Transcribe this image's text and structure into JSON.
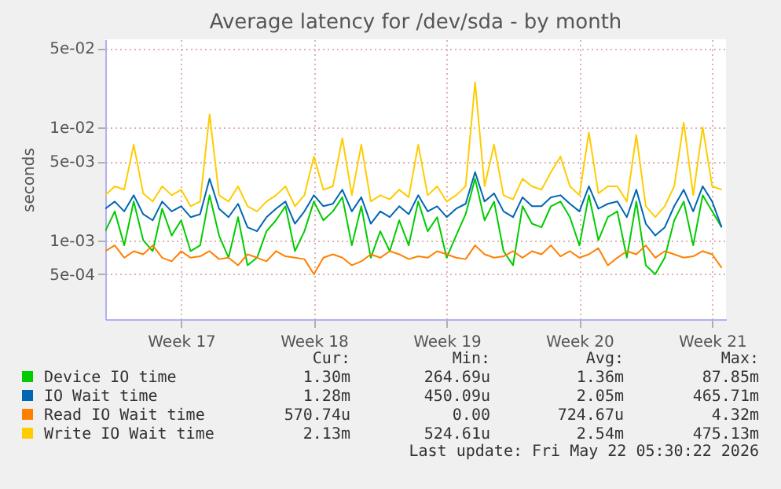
{
  "chart_data": {
    "type": "line",
    "title": "Average latency for /dev/sda - by month",
    "ylabel": "seconds",
    "log": true,
    "grid": true,
    "legend": "bottom",
    "xlim": [
      "2026-04-19T12:00",
      "2026-05-22T05:30"
    ],
    "xticks": [
      {
        "value": "2026-04-23T12:00",
        "label": "Week 17"
      },
      {
        "value": "2026-04-30T12:00",
        "label": "Week 18"
      },
      {
        "value": "2026-05-07T12:00",
        "label": "Week 19"
      },
      {
        "value": "2026-05-14T12:00",
        "label": "Week 20"
      },
      {
        "value": "2026-05-21T12:00",
        "label": "Week 21"
      }
    ],
    "ylim": [
      0.0002,
      0.06
    ],
    "yticks": [
      {
        "value": 0.0005,
        "label": "5e-04"
      },
      {
        "value": 0.001,
        "label": "1e-03"
      },
      {
        "value": 0.005,
        "label": "5e-03"
      },
      {
        "value": 0.01,
        "label": "1e-02"
      },
      {
        "value": 0.05,
        "label": "5e-02"
      }
    ],
    "x": [
      "2026-04-19T12:00",
      "2026-04-20T00:00",
      "2026-04-20T12:00",
      "2026-04-21T00:00",
      "2026-04-21T12:00",
      "2026-04-22T00:00",
      "2026-04-22T12:00",
      "2026-04-23T00:00",
      "2026-04-23T12:00",
      "2026-04-24T00:00",
      "2026-04-24T12:00",
      "2026-04-25T00:00",
      "2026-04-25T12:00",
      "2026-04-26T00:00",
      "2026-04-26T12:00",
      "2026-04-27T00:00",
      "2026-04-27T12:00",
      "2026-04-28T00:00",
      "2026-04-28T12:00",
      "2026-04-29T00:00",
      "2026-04-29T12:00",
      "2026-04-30T00:00",
      "2026-04-30T12:00",
      "2026-05-01T00:00",
      "2026-05-01T12:00",
      "2026-05-02T00:00",
      "2026-05-02T12:00",
      "2026-05-03T00:00",
      "2026-05-03T12:00",
      "2026-05-04T00:00",
      "2026-05-04T12:00",
      "2026-05-05T00:00",
      "2026-05-05T12:00",
      "2026-05-06T00:00",
      "2026-05-06T12:00",
      "2026-05-07T00:00",
      "2026-05-07T12:00",
      "2026-05-08T00:00",
      "2026-05-08T12:00",
      "2026-05-09T00:00",
      "2026-05-09T12:00",
      "2026-05-10T00:00",
      "2026-05-10T12:00",
      "2026-05-11T00:00",
      "2026-05-11T12:00",
      "2026-05-12T00:00",
      "2026-05-12T12:00",
      "2026-05-13T00:00",
      "2026-05-13T12:00",
      "2026-05-14T00:00",
      "2026-05-14T12:00",
      "2026-05-15T00:00",
      "2026-05-15T12:00",
      "2026-05-16T00:00",
      "2026-05-16T12:00",
      "2026-05-17T00:00",
      "2026-05-17T12:00",
      "2026-05-18T00:00",
      "2026-05-18T12:00",
      "2026-05-19T00:00",
      "2026-05-19T12:00",
      "2026-05-20T00:00",
      "2026-05-20T12:00",
      "2026-05-21T00:00",
      "2026-05-21T12:00",
      "2026-05-22T00:00"
    ],
    "series": [
      {
        "name": "Device IO time",
        "color": "#00cc00",
        "values": [
          0.0012,
          0.0018,
          0.0009,
          0.0022,
          0.001,
          0.0008,
          0.0019,
          0.0011,
          0.0015,
          0.0008,
          0.0009,
          0.0025,
          0.0011,
          0.0007,
          0.0016,
          0.0006,
          0.0007,
          0.0012,
          0.0015,
          0.002,
          0.0008,
          0.0012,
          0.0022,
          0.0015,
          0.0018,
          0.0024,
          0.0009,
          0.002,
          0.0007,
          0.0012,
          0.0008,
          0.0015,
          0.0009,
          0.0022,
          0.0012,
          0.0016,
          0.0007,
          0.0011,
          0.0017,
          0.0035,
          0.0015,
          0.0022,
          0.0008,
          0.0006,
          0.002,
          0.0014,
          0.0013,
          0.002,
          0.0022,
          0.0016,
          0.0009,
          0.0025,
          0.001,
          0.0016,
          0.0018,
          0.0007,
          0.0022,
          0.0006,
          0.0005,
          0.0007,
          0.0015,
          0.0022,
          0.0009,
          0.0025,
          0.0018,
          0.0013
        ]
      },
      {
        "name": "IO Wait time",
        "color": "#0066b3",
        "values": [
          0.0019,
          0.0022,
          0.0018,
          0.0025,
          0.0017,
          0.0015,
          0.0022,
          0.0018,
          0.002,
          0.0016,
          0.0017,
          0.0035,
          0.0019,
          0.0016,
          0.0021,
          0.0013,
          0.0012,
          0.0016,
          0.0019,
          0.0022,
          0.0014,
          0.0018,
          0.0025,
          0.002,
          0.0021,
          0.0028,
          0.0018,
          0.0024,
          0.0014,
          0.0018,
          0.0016,
          0.002,
          0.0017,
          0.0025,
          0.0018,
          0.002,
          0.0016,
          0.0019,
          0.0021,
          0.004,
          0.0022,
          0.0026,
          0.0018,
          0.0016,
          0.0024,
          0.002,
          0.002,
          0.0024,
          0.0025,
          0.0021,
          0.0018,
          0.003,
          0.0019,
          0.0021,
          0.0022,
          0.0016,
          0.0028,
          0.0014,
          0.0011,
          0.0013,
          0.002,
          0.0028,
          0.0018,
          0.003,
          0.0022,
          0.0013
        ]
      },
      {
        "name": "Read IO Wait time",
        "color": "#ff8000",
        "values": [
          0.0008,
          0.0009,
          0.0007,
          0.0008,
          0.00075,
          0.0009,
          0.0007,
          0.00065,
          0.0008,
          0.0007,
          0.00072,
          0.0008,
          0.00068,
          0.0007,
          0.0006,
          0.00075,
          0.0007,
          0.00065,
          0.0008,
          0.00072,
          0.0007,
          0.00068,
          0.0005,
          0.0007,
          0.00075,
          0.0007,
          0.0006,
          0.00065,
          0.00075,
          0.0007,
          0.0008,
          0.00075,
          0.00068,
          0.00072,
          0.0007,
          0.0008,
          0.00075,
          0.0007,
          0.00068,
          0.0009,
          0.00075,
          0.0007,
          0.00072,
          0.0008,
          0.0007,
          0.0008,
          0.00075,
          0.0009,
          0.00072,
          0.0008,
          0.0007,
          0.00075,
          0.00085,
          0.0006,
          0.0007,
          0.0008,
          0.00075,
          0.0009,
          0.0007,
          0.0008,
          0.00075,
          0.0007,
          0.00072,
          0.0008,
          0.00075,
          0.00057
        ]
      },
      {
        "name": "Write IO Wait time",
        "color": "#ffcc00",
        "values": [
          0.0025,
          0.003,
          0.0028,
          0.007,
          0.0026,
          0.0022,
          0.003,
          0.0025,
          0.0028,
          0.002,
          0.0022,
          0.013,
          0.0025,
          0.0022,
          0.003,
          0.002,
          0.0018,
          0.0022,
          0.0025,
          0.003,
          0.002,
          0.0025,
          0.0055,
          0.0028,
          0.003,
          0.008,
          0.0025,
          0.007,
          0.0022,
          0.0025,
          0.0023,
          0.0028,
          0.0024,
          0.007,
          0.0025,
          0.003,
          0.0022,
          0.0025,
          0.003,
          0.025,
          0.003,
          0.007,
          0.0025,
          0.0023,
          0.0035,
          0.003,
          0.0028,
          0.004,
          0.0055,
          0.003,
          0.0025,
          0.009,
          0.0026,
          0.003,
          0.003,
          0.0022,
          0.0085,
          0.002,
          0.0016,
          0.002,
          0.003,
          0.011,
          0.0025,
          0.01,
          0.003,
          0.0028
        ]
      }
    ],
    "annotations": [
      "Cur:",
      "Min:",
      "Avg:",
      "Max:",
      "1.30m",
      "264.69u",
      "1.36m",
      "87.85m",
      "1.28m",
      "450.09u",
      "2.05m",
      "465.71m",
      "570.74u",
      "0.00",
      "724.67u",
      "4.32m",
      "2.13m",
      "524.61u",
      "2.54m",
      "475.13m",
      "Last update: Fri May 22 05:30:22 2026"
    ]
  }
}
